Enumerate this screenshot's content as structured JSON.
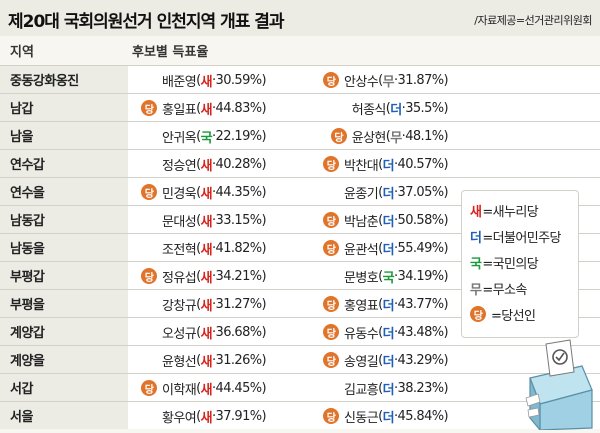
{
  "header": {
    "title": "제20대 국회의원선거 인천지역 개표 결과",
    "source": "/자료제공=선거관리위원회"
  },
  "columns": {
    "region": "지역",
    "candidates": "후보별 득표율"
  },
  "colors": {
    "새": "#d6231b",
    "더": "#1e5fb8",
    "국": "#1b9a3c",
    "무": "#777777",
    "winner_badge": "#e0742a"
  },
  "winner_badge_label": "당",
  "rows": [
    {
      "region": "중동강화옹진",
      "c1": {
        "name": "배준영",
        "party": "새",
        "pct": "30.59%",
        "win": false
      },
      "c2": {
        "name": "안상수",
        "party": "무",
        "pct": "31.87%",
        "win": true
      }
    },
    {
      "region": "남갑",
      "c1": {
        "name": "홍일표",
        "party": "새",
        "pct": "44.83%",
        "win": true
      },
      "c2": {
        "name": "허종식",
        "party": "더",
        "pct": "35.5%",
        "win": false
      }
    },
    {
      "region": "남을",
      "c1": {
        "name": "안귀옥",
        "party": "국",
        "pct": "22.19%",
        "win": false
      },
      "c2": {
        "name": "윤상현",
        "party": "무",
        "pct": "48.1%",
        "win": true
      }
    },
    {
      "region": "연수갑",
      "c1": {
        "name": "정승연",
        "party": "새",
        "pct": "40.28%",
        "win": false
      },
      "c2": {
        "name": "박찬대",
        "party": "더",
        "pct": "40.57%",
        "win": true
      }
    },
    {
      "region": "연수을",
      "c1": {
        "name": "민경욱",
        "party": "새",
        "pct": "44.35%",
        "win": true
      },
      "c2": {
        "name": "윤종기",
        "party": "더",
        "pct": "37.05%",
        "win": false
      }
    },
    {
      "region": "남동갑",
      "c1": {
        "name": "문대성",
        "party": "새",
        "pct": "33.15%",
        "win": false
      },
      "c2": {
        "name": "박남춘",
        "party": "더",
        "pct": "50.58%",
        "win": true
      }
    },
    {
      "region": "남동을",
      "c1": {
        "name": "조전혁",
        "party": "새",
        "pct": "41.82%",
        "win": false
      },
      "c2": {
        "name": "윤관석",
        "party": "더",
        "pct": "55.49%",
        "win": true
      }
    },
    {
      "region": "부평갑",
      "c1": {
        "name": "정유섭",
        "party": "새",
        "pct": "34.21%",
        "win": true
      },
      "c2": {
        "name": "문병호",
        "party": "국",
        "pct": "34.19%",
        "win": false
      }
    },
    {
      "region": "부평을",
      "c1": {
        "name": "강창규",
        "party": "새",
        "pct": "31.27%",
        "win": false
      },
      "c2": {
        "name": "홍영표",
        "party": "더",
        "pct": "43.77%",
        "win": true
      }
    },
    {
      "region": "계양갑",
      "c1": {
        "name": "오성규",
        "party": "새",
        "pct": "36.68%",
        "win": false
      },
      "c2": {
        "name": "유동수",
        "party": "더",
        "pct": "43.48%",
        "win": true
      }
    },
    {
      "region": "계양을",
      "c1": {
        "name": "윤형선",
        "party": "새",
        "pct": "31.26%",
        "win": false
      },
      "c2": {
        "name": "송영길",
        "party": "더",
        "pct": "43.29%",
        "win": true
      }
    },
    {
      "region": "서갑",
      "c1": {
        "name": "이학재",
        "party": "새",
        "pct": "44.45%",
        "win": true
      },
      "c2": {
        "name": "김교흥",
        "party": "더",
        "pct": "38.23%",
        "win": false
      }
    },
    {
      "region": "서을",
      "c1": {
        "name": "황우여",
        "party": "새",
        "pct": "37.91%",
        "win": false
      },
      "c2": {
        "name": "신동근",
        "party": "더",
        "pct": "45.84%",
        "win": true
      }
    }
  ],
  "legend": [
    {
      "key": "새",
      "text": "=새누리당"
    },
    {
      "key": "더",
      "text": "=더불어민주당"
    },
    {
      "key": "국",
      "text": "=국민의당"
    },
    {
      "key": "무",
      "text": "=무소속"
    },
    {
      "key": "당",
      "text": "=당선인",
      "badge": true
    }
  ]
}
